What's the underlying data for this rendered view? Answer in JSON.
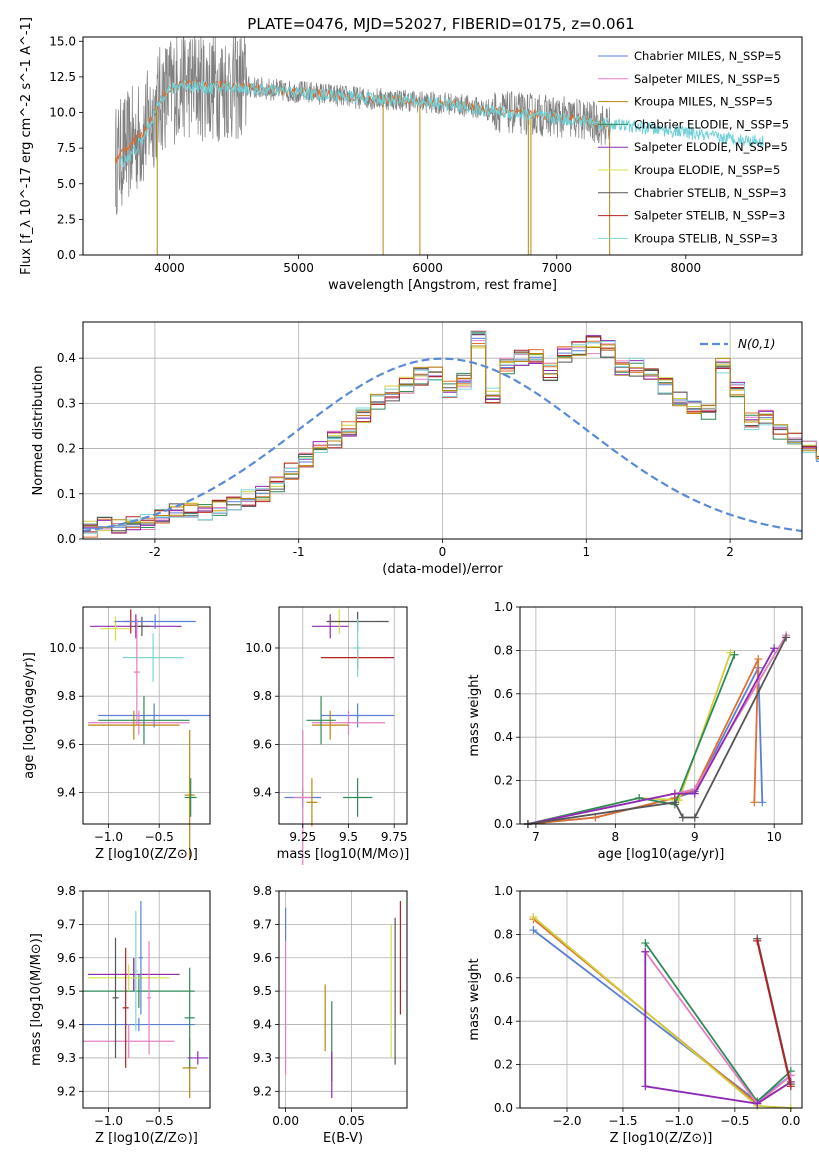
{
  "figure": {
    "title": "PLATE=0476, MJD=52027, FIBERID=0175, z=0.061"
  },
  "colors": {
    "model_palette": [
      "#5b7fd6",
      "#e37fc2",
      "#b8860b",
      "#2e8b57",
      "#8e2bb5",
      "#d4e04a",
      "#555555",
      "#b22222",
      "#7fd6d6"
    ],
    "spectrum_data": "#808080",
    "model_line": "#6fd0d8",
    "continuum": "#e06a2a",
    "gaussian": "#5b8bd6",
    "hist_palette": [
      "#5b7fd6",
      "#e07030",
      "#cfcf40",
      "#2e8b57",
      "#e37fc2",
      "#8e2bb5",
      "#555555",
      "#b22222",
      "#7fd6d6",
      "#b8860b"
    ]
  },
  "chart_data": [
    {
      "type": "line",
      "id": "spectrum",
      "xlabel": "wavelength [Angstrom, rest frame]",
      "ylabel": "Flux [f_λ 10^-17 erg cm^-2 s^-1 A^-1]",
      "xlim": [
        3330,
        8900
      ],
      "ylim": [
        0,
        15.3
      ],
      "xticks": [
        4000,
        5000,
        6000,
        7000,
        8000
      ],
      "yticks": [
        0.0,
        2.5,
        5.0,
        7.5,
        10.0,
        12.5,
        15.0
      ],
      "legend_position": "top-right",
      "legend": [
        "Chabrier MILES, N_SSP=5",
        "Salpeter MILES, N_SSP=5",
        "Kroupa MILES, N_SSP=5",
        "Chabrier ELODIE, N_SSP=5",
        "Salpeter ELODIE, N_SSP=5",
        "Kroupa ELODIE, N_SSP=5",
        "Chabrier STELIB, N_SSP=3",
        "Salpeter STELIB, N_SSP=3",
        "Kroupa STELIB, N_SSP=3"
      ],
      "continuum": {
        "x": [
          3580,
          3650,
          3800,
          3950,
          4100,
          4300,
          4500,
          4700,
          4900,
          5100,
          5300,
          5500,
          5800,
          6000,
          6200,
          6400,
          6600,
          6800,
          7000,
          7200,
          7420
        ],
        "y": [
          6.6,
          7.4,
          8.6,
          11.2,
          12.1,
          11.9,
          11.9,
          11.7,
          11.5,
          11.4,
          11.2,
          11.0,
          10.9,
          10.7,
          10.6,
          10.3,
          10.0,
          9.9,
          9.7,
          9.5,
          9.0
        ]
      },
      "model": {
        "x": [
          3620,
          3700,
          3800,
          3950,
          4100,
          4300,
          4500,
          4700,
          4900,
          5100,
          5300,
          5500,
          5800,
          6000,
          6200,
          6400,
          6600,
          6800,
          7000,
          7200,
          7400,
          7600,
          7800,
          8000,
          8200,
          8400,
          8600
        ],
        "y": [
          6.5,
          7.0,
          8.2,
          11.3,
          12.0,
          11.7,
          11.8,
          11.6,
          11.5,
          11.3,
          11.2,
          11.0,
          10.9,
          10.7,
          10.5,
          10.2,
          10.0,
          9.8,
          9.6,
          9.4,
          9.2,
          9.0,
          8.8,
          8.6,
          8.3,
          8.1,
          8.0
        ]
      },
      "noise": {
        "x_start": 3580,
        "x_end": 7420,
        "high_scatter_end": 4600,
        "spikes": [
          {
            "x": 3905,
            "y": 0.0
          },
          {
            "x": 5655,
            "y": 0.0
          },
          {
            "x": 5940,
            "y": 0.0
          },
          {
            "x": 6780,
            "y": 0.0
          },
          {
            "x": 6800,
            "y": 0.0
          },
          {
            "x": 7410,
            "y": 0.0
          }
        ]
      }
    },
    {
      "type": "bar",
      "id": "residual_histogram",
      "xlabel": "(data-model)/error",
      "ylabel": "Normed distribution",
      "xlim": [
        -2.5,
        2.5
      ],
      "ylim": [
        0,
        0.48
      ],
      "xticks": [
        -2,
        -1,
        0,
        1,
        2
      ],
      "yticks": [
        0.0,
        0.1,
        0.2,
        0.3,
        0.4
      ],
      "bin_width": 0.1,
      "bin_start": -2.5,
      "legend_position": "top-right",
      "legend": [
        "N(0,1)"
      ],
      "base_values": [
        0.02,
        0.03,
        0.03,
        0.03,
        0.04,
        0.05,
        0.06,
        0.06,
        0.06,
        0.07,
        0.08,
        0.09,
        0.1,
        0.12,
        0.15,
        0.17,
        0.2,
        0.22,
        0.24,
        0.27,
        0.3,
        0.32,
        0.34,
        0.36,
        0.37,
        0.33,
        0.35,
        0.44,
        0.32,
        0.38,
        0.4,
        0.4,
        0.37,
        0.41,
        0.42,
        0.43,
        0.42,
        0.38,
        0.38,
        0.36,
        0.34,
        0.31,
        0.29,
        0.28,
        0.38,
        0.33,
        0.26,
        0.27,
        0.24,
        0.22,
        0.2,
        0.17,
        0.2,
        0.15,
        0.13,
        0.12,
        0.1,
        0.08,
        0.07,
        0.05,
        0.05,
        0.04,
        0.04,
        0.03,
        0.03,
        0.03,
        0.02,
        0.05,
        0.02,
        0.04,
        0.03,
        0.02,
        0.02,
        0.02,
        0.02
      ],
      "gaussian": {
        "mean": 0,
        "sigma": 1
      }
    },
    {
      "type": "scatter",
      "id": "age_vs_Z",
      "xlabel": "Z [log10(Z/Z⊙)]",
      "ylabel": "age [log10(age/yr)]",
      "xlim": [
        -1.25,
        0.0
      ],
      "ylim": [
        9.27,
        10.17
      ],
      "xticks": [
        -1.0,
        -0.5
      ],
      "xticklabels": [
        "−1.0",
        "−0.5"
      ],
      "yticks": [
        9.4,
        9.6,
        9.8,
        10.0
      ],
      "points": [
        {
          "x": -0.55,
          "y": 9.72,
          "xerr": 0.55,
          "yerr": 0.05
        },
        {
          "x": -0.7,
          "y": 9.69,
          "xerr": 0.5,
          "yerr": 0.05
        },
        {
          "x": -0.75,
          "y": 9.68,
          "xerr": 0.45,
          "yerr": 0.06
        },
        {
          "x": -0.65,
          "y": 9.7,
          "xerr": 0.45,
          "yerr": 0.1
        },
        {
          "x": -0.73,
          "y": 10.09,
          "xerr": 0.45,
          "yerr": 0.05
        },
        {
          "x": -0.93,
          "y": 10.08,
          "xerr": 0.15,
          "yerr": 0.05
        },
        {
          "x": -0.67,
          "y": 10.09,
          "xerr": 0.08,
          "yerr": 0.04
        },
        {
          "x": -0.78,
          "y": 10.11,
          "xerr": 0.06,
          "yerr": 0.05
        },
        {
          "x": -0.56,
          "y": 9.96,
          "xerr": 0.3,
          "yerr": 0.1
        },
        {
          "x": -0.54,
          "y": 10.11,
          "xerr": 0.4,
          "yerr": 0.03
        },
        {
          "x": -0.72,
          "y": 9.9,
          "xerr": 0.03,
          "yerr": 0.22
        },
        {
          "x": -0.2,
          "y": 9.39,
          "xerr": 0.05,
          "yerr": 0.27
        },
        {
          "x": -0.19,
          "y": 9.38,
          "xerr": 0.06,
          "yerr": 0.08
        }
      ]
    },
    {
      "type": "scatter",
      "id": "age_vs_mass",
      "xlabel": "mass [log10(M/M⊙)]",
      "ylabel": "",
      "xlim": [
        9.12,
        9.82
      ],
      "ylim": [
        9.27,
        10.17
      ],
      "xticks": [
        9.25,
        9.5,
        9.75
      ],
      "yticks": [
        9.4,
        9.6,
        9.8,
        10.0
      ],
      "points": [
        {
          "x": 9.55,
          "y": 9.72,
          "xerr": 0.2,
          "yerr": 0.05
        },
        {
          "x": 9.5,
          "y": 9.69,
          "xerr": 0.2,
          "yerr": 0.05
        },
        {
          "x": 9.4,
          "y": 9.68,
          "xerr": 0.1,
          "yerr": 0.06
        },
        {
          "x": 9.35,
          "y": 9.7,
          "xerr": 0.08,
          "yerr": 0.1
        },
        {
          "x": 9.4,
          "y": 10.09,
          "xerr": 0.1,
          "yerr": 0.05
        },
        {
          "x": 9.45,
          "y": 10.11,
          "xerr": 0.05,
          "yerr": 0.05
        },
        {
          "x": 9.55,
          "y": 10.11,
          "xerr": 0.17,
          "yerr": 0.04
        },
        {
          "x": 9.55,
          "y": 9.96,
          "xerr": 0.2,
          "yerr": 0.05
        },
        {
          "x": 9.55,
          "y": 10.0,
          "xerr": 0.02,
          "yerr": 0.12
        },
        {
          "x": 9.25,
          "y": 9.38,
          "xerr": 0.1,
          "yerr": 0.04
        },
        {
          "x": 9.25,
          "y": 9.38,
          "xerr": 0.05,
          "yerr": 0.28
        },
        {
          "x": 9.3,
          "y": 9.36,
          "xerr": 0.03,
          "yerr": 0.1
        },
        {
          "x": 9.55,
          "y": 9.38,
          "xerr": 0.08,
          "yerr": 0.08
        }
      ]
    },
    {
      "type": "line",
      "id": "mass_weight_vs_age",
      "xlabel": "age [log10(age/yr)]",
      "ylabel": "mass weight",
      "xlim": [
        6.8,
        10.35
      ],
      "ylim": [
        0.0,
        1.0
      ],
      "xticks": [
        7,
        8,
        9,
        10
      ],
      "yticks": [
        0.0,
        0.2,
        0.4,
        0.6,
        0.8,
        1.0
      ],
      "series": [
        {
          "x": [
            6.9,
            7.75,
            8.75,
            9.0,
            9.8,
            9.85
          ],
          "y": [
            0.0,
            0.03,
            0.12,
            0.15,
            0.72,
            0.1
          ]
        },
        {
          "x": [
            6.9,
            7.75,
            8.75,
            9.0,
            9.8,
            9.75
          ],
          "y": [
            0.0,
            0.03,
            0.12,
            0.16,
            0.76,
            0.1
          ]
        },
        {
          "x": [
            6.9,
            8.3,
            8.8,
            9.45
          ],
          "y": [
            0.0,
            0.12,
            0.11,
            0.79
          ]
        },
        {
          "x": [
            6.9,
            8.3,
            8.75,
            9.5
          ],
          "y": [
            0.0,
            0.12,
            0.09,
            0.78
          ]
        },
        {
          "x": [
            6.9,
            8.75,
            9.0,
            10.15
          ],
          "y": [
            0.0,
            0.14,
            0.16,
            0.87
          ]
        },
        {
          "x": [
            6.9,
            8.75,
            9.0,
            10.0
          ],
          "y": [
            0.0,
            0.14,
            0.14,
            0.81
          ]
        },
        {
          "x": [
            6.9,
            8.75,
            8.85,
            9.0,
            10.15
          ],
          "y": [
            0.0,
            0.1,
            0.03,
            0.03,
            0.86
          ]
        }
      ]
    },
    {
      "type": "scatter",
      "id": "mass_vs_Z",
      "xlabel": "Z [log10(Z/Z⊙)]",
      "ylabel": "mass [log10(M/M⊙)]",
      "xlim": [
        -1.25,
        0.0
      ],
      "ylim": [
        9.15,
        9.8
      ],
      "xticks": [
        -1.0,
        -0.5
      ],
      "xticklabels": [
        "−1.0",
        "−0.5"
      ],
      "yticks": [
        9.2,
        9.3,
        9.4,
        9.5,
        9.6,
        9.7,
        9.8
      ],
      "points": [
        {
          "x": -0.7,
          "y": 9.4,
          "xerr": 0.55,
          "yerr": 0.02
        },
        {
          "x": -0.8,
          "y": 9.35,
          "xerr": 0.45,
          "yerr": 0.05
        },
        {
          "x": -0.75,
          "y": 9.55,
          "xerr": 0.45,
          "yerr": 0.05
        },
        {
          "x": -0.7,
          "y": 9.5,
          "xerr": 0.55,
          "yerr": 0.05
        },
        {
          "x": -0.75,
          "y": 9.55,
          "xerr": 0.45,
          "yerr": 0.05
        },
        {
          "x": -0.8,
          "y": 9.54,
          "xerr": 0.4,
          "yerr": 0.04
        },
        {
          "x": -0.93,
          "y": 9.48,
          "xerr": 0.03,
          "yerr": 0.18
        },
        {
          "x": -0.83,
          "y": 9.45,
          "xerr": 0.03,
          "yerr": 0.18
        },
        {
          "x": -0.73,
          "y": 9.56,
          "xerr": 0.02,
          "yerr": 0.18
        },
        {
          "x": -0.68,
          "y": 9.6,
          "xerr": 0.02,
          "yerr": 0.17
        },
        {
          "x": -0.6,
          "y": 9.48,
          "xerr": 0.02,
          "yerr": 0.17
        },
        {
          "x": -0.2,
          "y": 9.27,
          "xerr": 0.07,
          "yerr": 0.09
        },
        {
          "x": -0.2,
          "y": 9.42,
          "xerr": 0.05,
          "yerr": 0.15
        },
        {
          "x": -0.12,
          "y": 9.3,
          "xerr": 0.1,
          "yerr": 0.02
        }
      ]
    },
    {
      "type": "scatter",
      "id": "mass_vs_ebv",
      "xlabel": "E(B-V)",
      "ylabel": "",
      "xlim": [
        -0.005,
        0.092
      ],
      "ylim": [
        9.15,
        9.8
      ],
      "xticks": [
        0.0,
        0.05
      ],
      "xticklabels": [
        "0.00",
        "0.05"
      ],
      "yticks": [
        9.2,
        9.3,
        9.4,
        9.5,
        9.6,
        9.7,
        9.8
      ],
      "points": [
        {
          "x": 0.0,
          "y": 9.7,
          "xerr": 0.0,
          "yerr": 0.05
        },
        {
          "x": 0.0,
          "y": 9.45,
          "xerr": 0.0,
          "yerr": 0.2
        },
        {
          "x": 0.03,
          "y": 9.42,
          "xerr": 0.0,
          "yerr": 0.1
        },
        {
          "x": 0.035,
          "y": 9.35,
          "xerr": 0.0,
          "yerr": 0.12
        },
        {
          "x": 0.035,
          "y": 9.25,
          "xerr": 0.0,
          "yerr": 0.07
        },
        {
          "x": 0.08,
          "y": 9.5,
          "xerr": 0.0,
          "yerr": 0.2
        },
        {
          "x": 0.083,
          "y": 9.5,
          "xerr": 0.0,
          "yerr": 0.22
        },
        {
          "x": 0.087,
          "y": 9.6,
          "xerr": 0.0,
          "yerr": 0.17
        }
      ]
    },
    {
      "type": "line",
      "id": "mass_weight_vs_Z",
      "xlabel": "Z [log10(Z/Z⊙)]",
      "ylabel": "mass weight",
      "xlim": [
        -2.42,
        0.1
      ],
      "ylim": [
        0.0,
        1.0
      ],
      "xticks": [
        -2.0,
        -1.5,
        -1.0,
        -0.5,
        0.0
      ],
      "xticklabels": [
        "−2.0",
        "−1.5",
        "−1.0",
        "−0.5",
        "0.0"
      ],
      "yticks": [
        0.0,
        0.2,
        0.4,
        0.6,
        0.8,
        1.0
      ],
      "series": [
        {
          "x": [
            -2.3,
            -0.3,
            0.0
          ],
          "y": [
            0.82,
            0.03,
            0.15
          ]
        },
        {
          "x": [
            -2.3,
            -0.3,
            0.0
          ],
          "y": [
            0.87,
            0.02,
            0.12
          ]
        },
        {
          "x": [
            -2.3,
            -0.3,
            0.0
          ],
          "y": [
            0.88,
            0.01,
            0.0
          ]
        },
        {
          "x": [
            -1.3,
            -0.3,
            0.0
          ],
          "y": [
            0.76,
            0.03,
            0.17
          ]
        },
        {
          "x": [
            -1.3,
            -0.3,
            0.0
          ],
          "y": [
            0.72,
            0.02,
            0.15
          ]
        },
        {
          "x": [
            -1.3,
            -1.3,
            -0.3,
            0.0
          ],
          "y": [
            0.72,
            0.1,
            0.02,
            0.12
          ]
        },
        {
          "x": [
            -0.3,
            0.0
          ],
          "y": [
            0.78,
            0.11
          ]
        },
        {
          "x": [
            -0.3,
            0.0
          ],
          "y": [
            0.77,
            0.1
          ]
        }
      ]
    }
  ]
}
